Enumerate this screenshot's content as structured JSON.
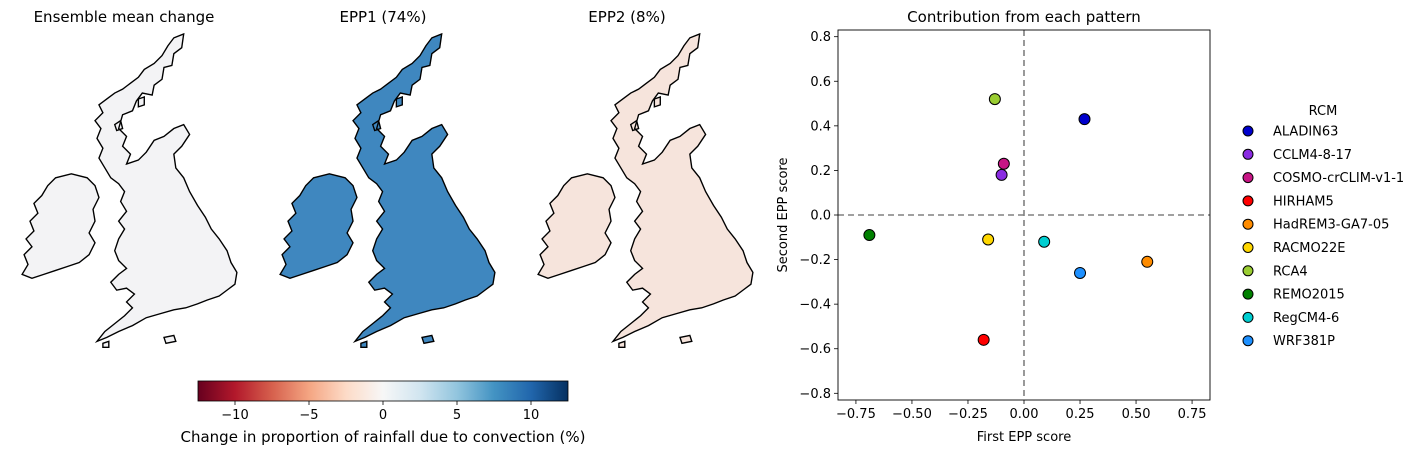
{
  "maps": [
    {
      "title": "Ensemble mean change",
      "field": "mean"
    },
    {
      "title": "EPP1 (74%)",
      "field": "epp1"
    },
    {
      "title": "EPP2 (8%)",
      "field": "epp2"
    }
  ],
  "colorbar": {
    "label": "Change in proportion of rainfall due to convection (%)",
    "vmin": -12.5,
    "vmax": 12.5,
    "ticks": [
      -10,
      -5,
      0,
      5,
      10
    ],
    "tick_labels": [
      "−10",
      "−5",
      "0",
      "5",
      "10"
    ],
    "colormap": "RdBu",
    "stops": [
      "#67001f",
      "#b2182b",
      "#d6604d",
      "#f4a582",
      "#fddbc7",
      "#f7f7f7",
      "#d1e5f0",
      "#92c5de",
      "#4393c3",
      "#2166ac",
      "#053061"
    ]
  },
  "chart_data": {
    "type": "scatter",
    "title": "Contribution from each pattern",
    "xlabel": "First EPP score",
    "ylabel": "Second EPP score",
    "xlim": [
      -0.83,
      0.83
    ],
    "ylim": [
      -0.83,
      0.83
    ],
    "xticks": [
      -0.75,
      -0.5,
      -0.25,
      0.0,
      0.25,
      0.5,
      0.75
    ],
    "xtick_labels": [
      "−0.75",
      "−0.50",
      "−0.25",
      "0.00",
      "0.25",
      "0.50",
      "0.75"
    ],
    "yticks": [
      -0.8,
      -0.6,
      -0.4,
      -0.2,
      0.0,
      0.2,
      0.4,
      0.6,
      0.8
    ],
    "ytick_labels": [
      "−0.8",
      "−0.6",
      "−0.4",
      "−0.2",
      "0.0",
      "0.2",
      "0.4",
      "0.6",
      "0.8"
    ],
    "reference_lines": {
      "x": 0.0,
      "y": 0.0,
      "style": "dashed",
      "color": "#808080"
    },
    "grid": false,
    "legend": {
      "title": "RCM",
      "placement": "right-outside"
    },
    "series": [
      {
        "name": "ALADIN63",
        "color": "#0000cd",
        "x": 0.27,
        "y": 0.43
      },
      {
        "name": "CCLM4-8-17",
        "color": "#8a2be2",
        "x": -0.1,
        "y": 0.18
      },
      {
        "name": "COSMO-crCLIM-v1-1",
        "color": "#c71585",
        "x": -0.09,
        "y": 0.23
      },
      {
        "name": "HIRHAM5",
        "color": "#ff0000",
        "x": -0.18,
        "y": -0.56
      },
      {
        "name": "HadREM3-GA7-05",
        "color": "#ff8c00",
        "x": 0.55,
        "y": -0.21
      },
      {
        "name": "RACMO22E",
        "color": "#ffd700",
        "x": -0.16,
        "y": -0.11
      },
      {
        "name": "RCA4",
        "color": "#9acd32",
        "x": -0.13,
        "y": 0.52
      },
      {
        "name": "REMO2015",
        "color": "#008000",
        "x": -0.69,
        "y": -0.09
      },
      {
        "name": "RegCM4-6",
        "color": "#00ced1",
        "x": 0.09,
        "y": -0.12
      },
      {
        "name": "WRF381P",
        "color": "#1e90ff",
        "x": 0.25,
        "y": -0.26
      }
    ]
  }
}
